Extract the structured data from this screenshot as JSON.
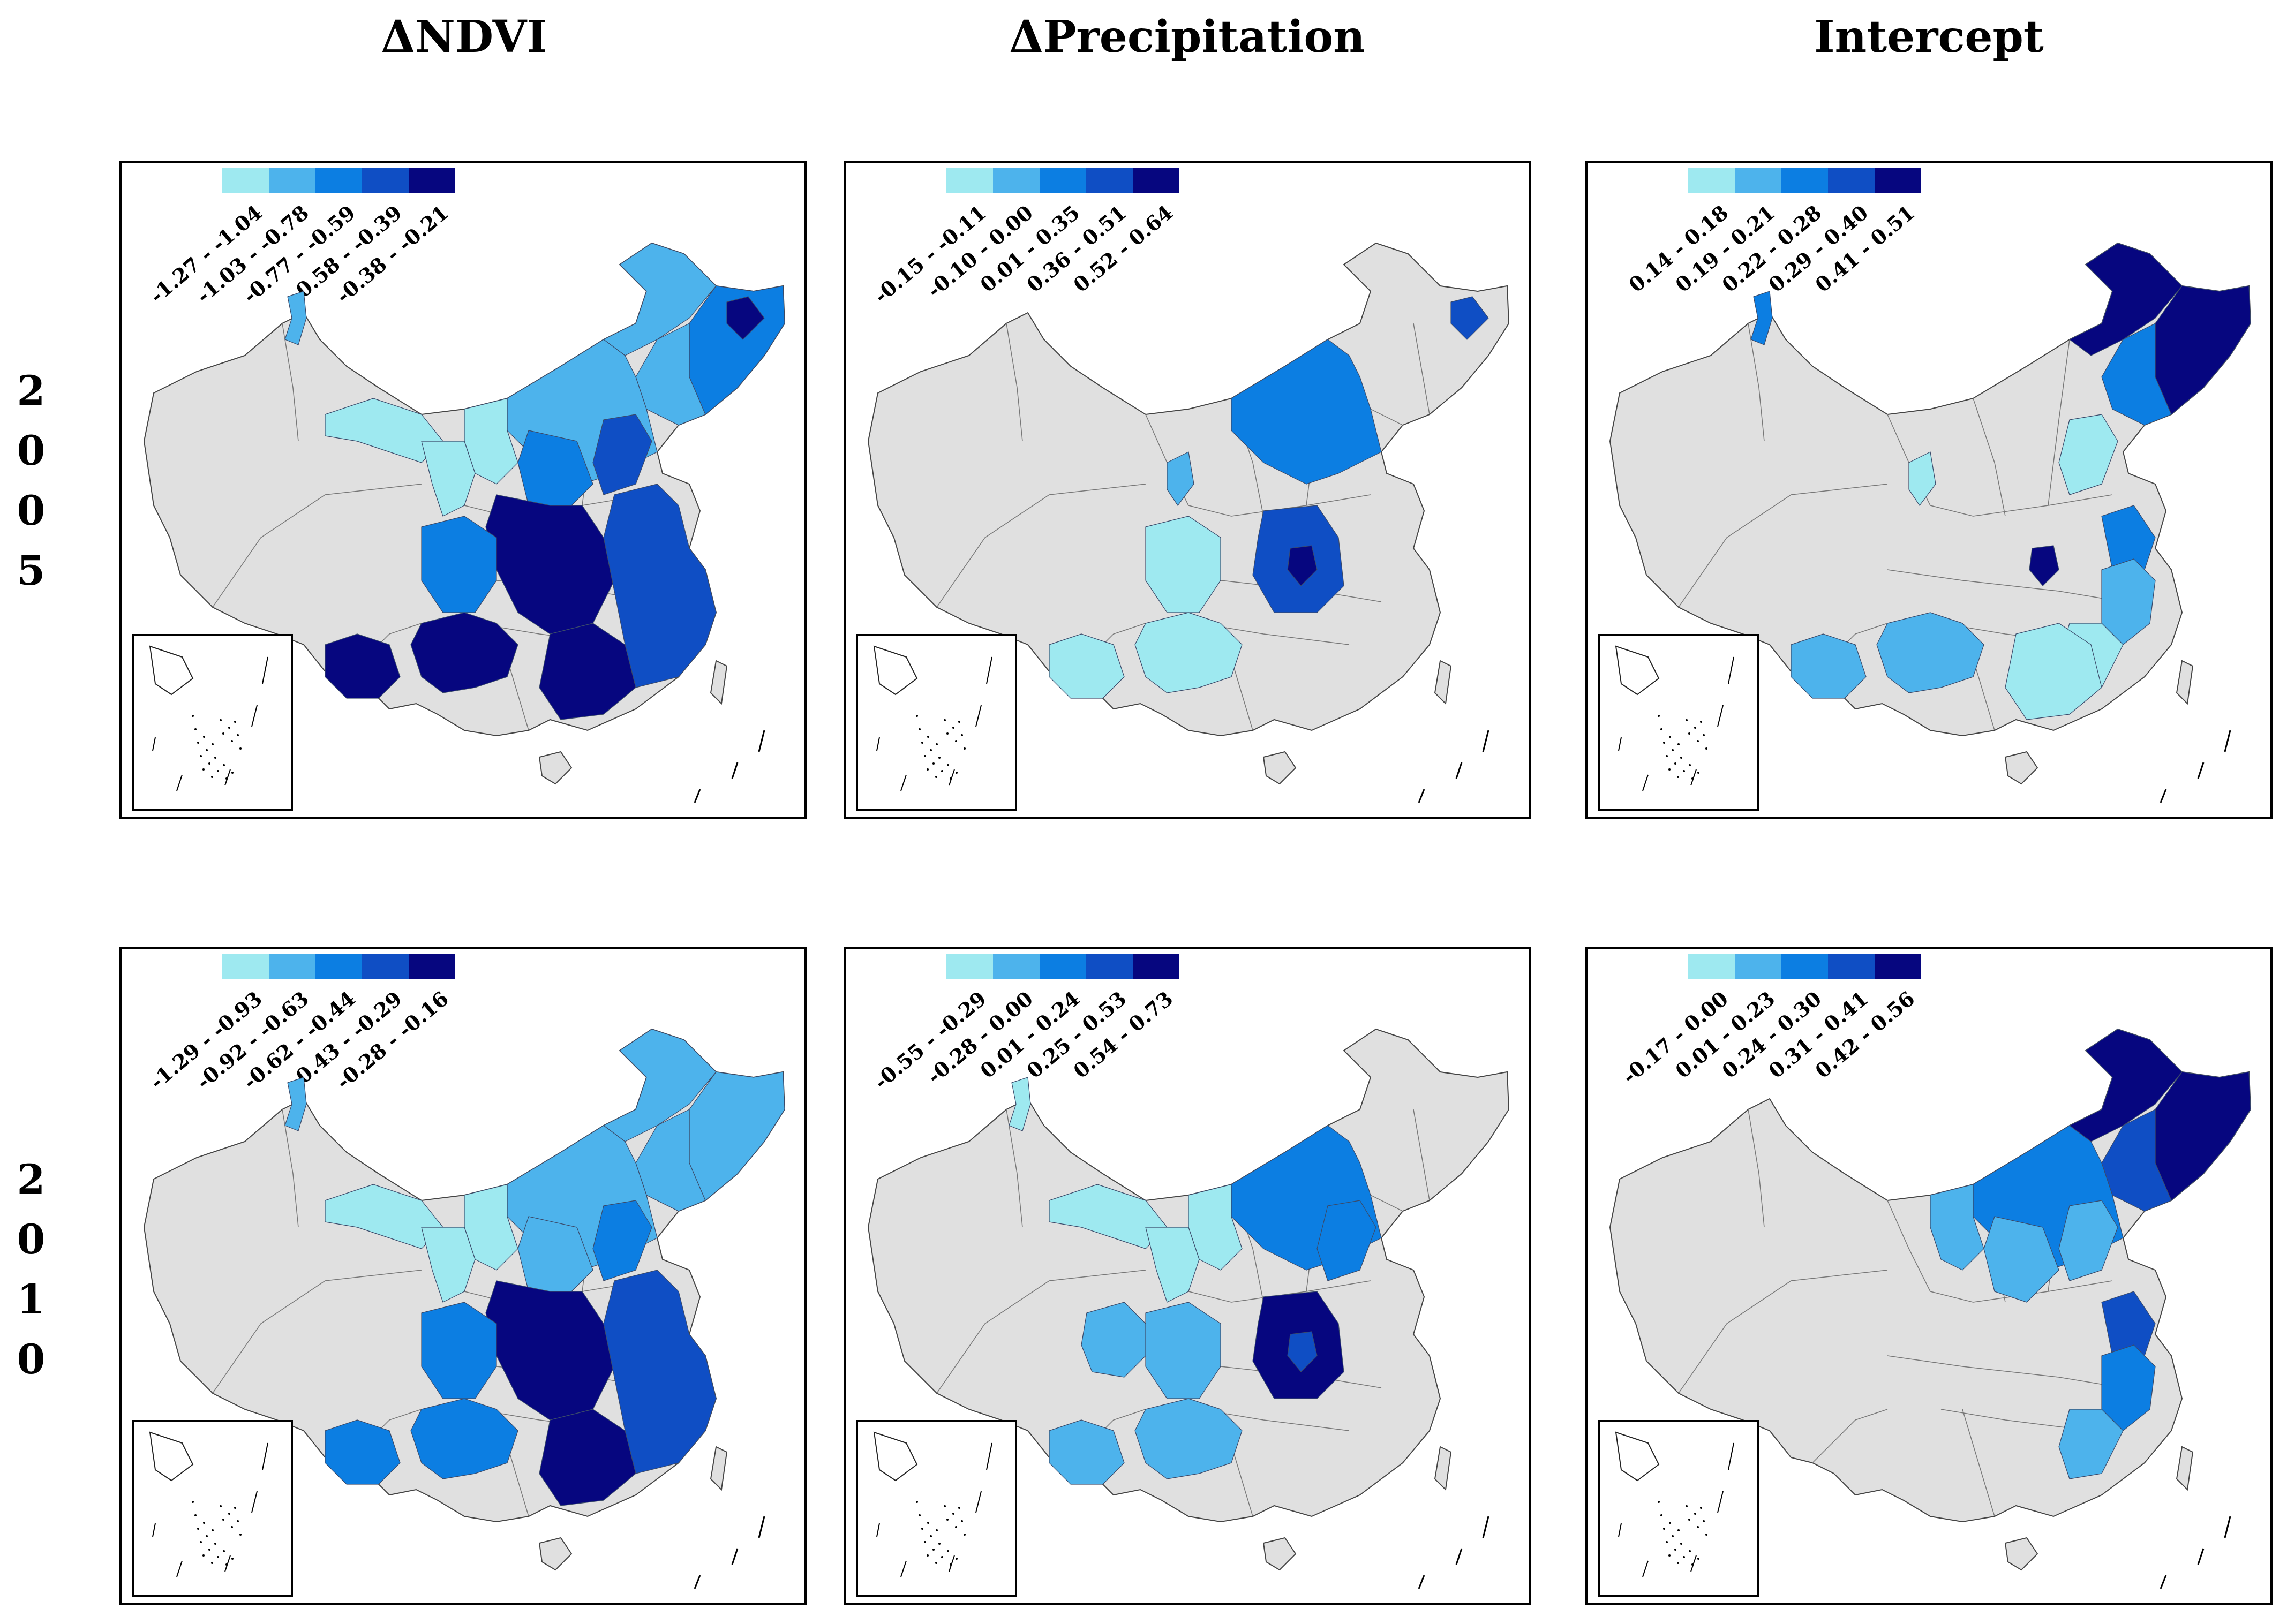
{
  "column_titles": [
    "ΔNDVI",
    "ΔPrecipitation",
    "Intercept"
  ],
  "row_labels": [
    {
      "chars": [
        "2",
        "0",
        "0",
        "5"
      ]
    },
    {
      "chars": [
        "2",
        "0",
        "1",
        "0"
      ]
    }
  ],
  "colors": {
    "c1": "#9ee9f0",
    "c2": "#4db3ec",
    "c3": "#0c7ee2",
    "c4": "#0f4ec4",
    "c5": "#06067f",
    "base": "#e0e0e0",
    "border": "#555555"
  },
  "panels": [
    {
      "id": "ndvi-2005",
      "legend": [
        "-1.27 - -1.04",
        "-1.03 - -0.78",
        "-0.77 - -0.59",
        "-0.58 - -0.39",
        "-0.38 - -0.21"
      ]
    },
    {
      "id": "precip-2005",
      "legend": [
        "-0.15 - -0.11",
        "-0.10 - 0.00",
        "0.01 - 0.35",
        "0.36 - 0.51",
        "0.52 - 0.64"
      ]
    },
    {
      "id": "intercept-2005",
      "legend": [
        "0.14 - 0.18",
        "0.19 - 0.21",
        "0.22 - 0.28",
        "0.29 - 0.40",
        "0.41 - 0.51"
      ]
    },
    {
      "id": "ndvi-2010",
      "legend": [
        "-1.29 - -0.93",
        "-0.92 - -0.63",
        "-0.62 - -0.44",
        "-0.43 - -0.29",
        "-0.28 - -0.16"
      ]
    },
    {
      "id": "precip-2010",
      "legend": [
        "-0.55 - -0.29",
        "-0.28 - 0.00",
        "0.01 - 0.24",
        "0.25 - 0.53",
        "0.54 - 0.73"
      ]
    },
    {
      "id": "intercept-2010",
      "legend": [
        "-0.17 - 0.00",
        "0.01 - 0.23",
        "0.24 - 0.30",
        "0.31 - 0.41",
        "0.42 - 0.56"
      ]
    }
  ]
}
